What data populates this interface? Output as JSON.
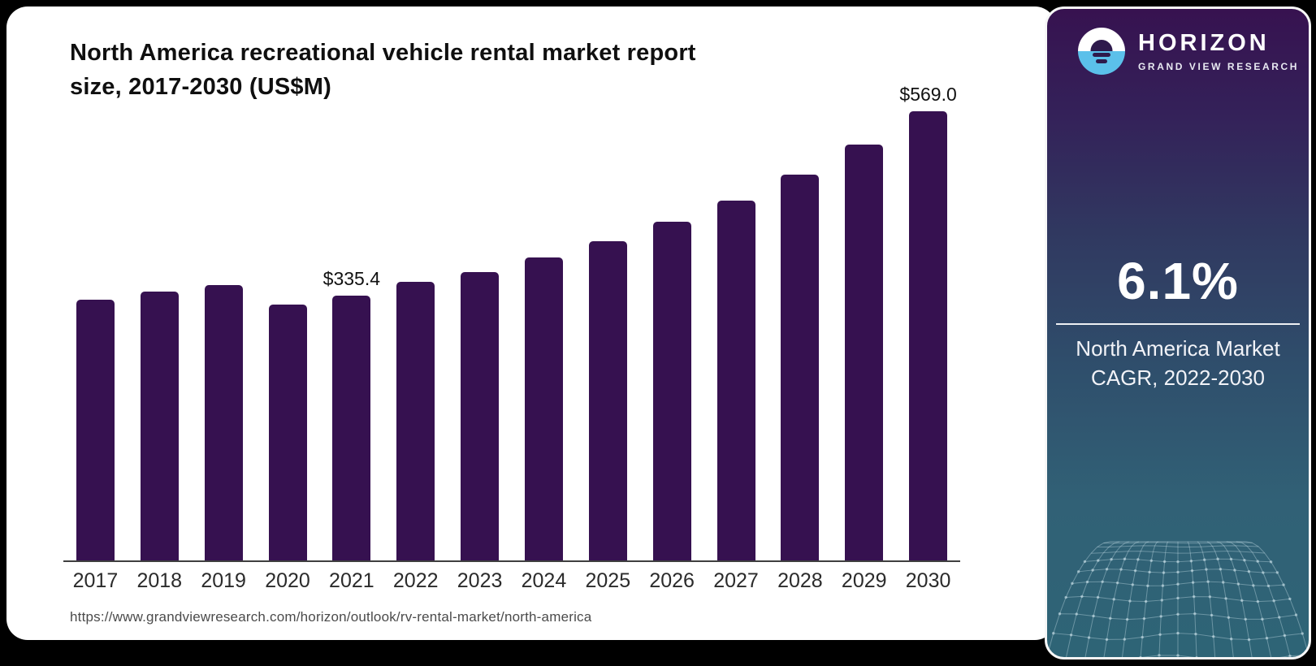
{
  "report": {
    "title_line1": "North America recreational vehicle rental market report",
    "title_line2": "size, 2017-2030 (US$M)",
    "source_url": "https://www.grandviewresearch.com/horizon/outlook/rv-rental-market/north-america"
  },
  "chart_data": {
    "type": "bar",
    "title": "North America recreational vehicle rental market report size, 2017-2030 (US$M)",
    "unit": "US$M",
    "categories": [
      "2017",
      "2018",
      "2019",
      "2020",
      "2021",
      "2022",
      "2023",
      "2024",
      "2025",
      "2026",
      "2027",
      "2028",
      "2029",
      "2030"
    ],
    "values": [
      330.2,
      340.1,
      349.1,
      323.6,
      335.4,
      352.9,
      365.3,
      384.2,
      404.5,
      428.9,
      455.8,
      488.5,
      526.7,
      569.0
    ],
    "data_labels": [
      "",
      "",
      "",
      "",
      "$335.4",
      "",
      "",
      "",
      "",
      "",
      "",
      "",
      "",
      "$569.0"
    ],
    "bar_color": "#361150",
    "axis_color": "#3f3f3f",
    "xlabel": "",
    "ylabel": "",
    "ylim": [
      0,
      600
    ],
    "grid": false,
    "legend": false
  },
  "sidebar": {
    "brand": {
      "name": "HORIZON",
      "subtitle": "GRAND VIEW RESEARCH",
      "logo_icon": "horizon-sunset-icon",
      "logo_blue": "#5BC0EA"
    },
    "stat": {
      "value": "6.1%",
      "label_line1": "North America Market",
      "label_line2": "CAGR, 2022-2030"
    },
    "colors": {
      "gradient_top": "#371250",
      "gradient_bottom": "#2E6476",
      "mesh_line": "#9FC4CE"
    }
  }
}
